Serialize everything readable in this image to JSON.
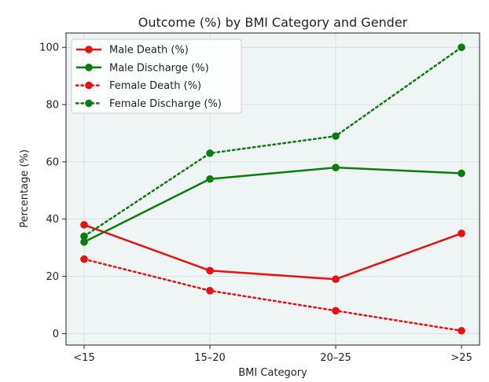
{
  "chart_data": {
    "type": "line",
    "title": "Outcome (%) by BMI Category and Gender",
    "xlabel": "BMI Category",
    "ylabel": "Percentage (%)",
    "categories": [
      "<15",
      "15–20",
      "20–25",
      ">25"
    ],
    "ylim": [
      -4,
      105
    ],
    "yticks": [
      0,
      20,
      40,
      60,
      80,
      100
    ],
    "grid": true,
    "legend_position": "top-left",
    "series": [
      {
        "name": "Male Death (%)",
        "values": [
          38,
          22,
          19,
          35
        ],
        "color": "#e81010",
        "style": "solid"
      },
      {
        "name": "Male Discharge (%)",
        "values": [
          32,
          54,
          58,
          56
        ],
        "color": "#0a7d0a",
        "style": "solid"
      },
      {
        "name": "Female Death (%)",
        "values": [
          26,
          15,
          8,
          1
        ],
        "color": "#e81010",
        "style": "dotted"
      },
      {
        "name": "Female Discharge (%)",
        "values": [
          34,
          63,
          69,
          100
        ],
        "color": "#0a7d0a",
        "style": "dotted"
      }
    ]
  }
}
